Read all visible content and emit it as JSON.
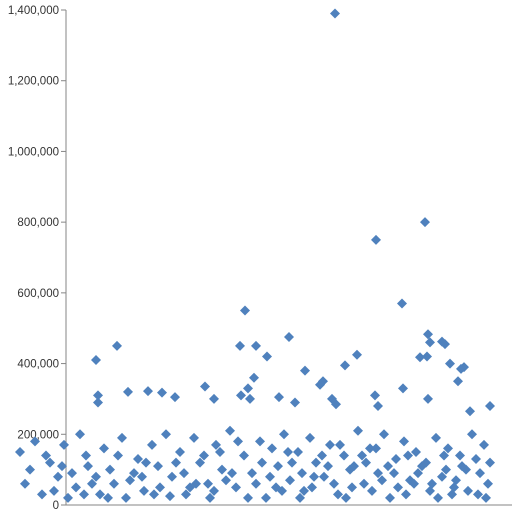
{
  "chart_data": {
    "type": "scatter",
    "title": "",
    "xlabel": "",
    "ylabel": "",
    "ylim": [
      0,
      1400000
    ],
    "y_ticks": [
      0,
      200000,
      400000,
      600000,
      800000,
      1000000,
      1200000,
      1400000
    ],
    "y_tick_labels": [
      "0",
      "200,000",
      "400,000",
      "600,000",
      "800,000",
      "1,000,000",
      "1,200,000",
      "1,400,000"
    ],
    "grid": false,
    "marker": "diamond",
    "marker_color": "#4F81BD",
    "series": [
      {
        "points_high": [
          [
            335,
            1390000
          ],
          [
            425,
            800000
          ],
          [
            376,
            750000
          ],
          [
            402,
            570000
          ],
          [
            245,
            550000
          ],
          [
            428,
            483000
          ],
          [
            289,
            475000
          ],
          [
            442,
            462000
          ],
          [
            445,
            455000
          ],
          [
            117,
            450000
          ],
          [
            240,
            450000
          ],
          [
            256,
            450000
          ],
          [
            430,
            460000
          ],
          [
            357,
            425000
          ],
          [
            267,
            420000
          ],
          [
            96,
            410000
          ],
          [
            420,
            418000
          ],
          [
            427,
            420000
          ],
          [
            464,
            390000
          ],
          [
            345,
            395000
          ],
          [
            305,
            380000
          ],
          [
            450,
            400000
          ],
          [
            461,
            385000
          ],
          [
            254,
            360000
          ],
          [
            458,
            350000
          ],
          [
            320,
            340000
          ],
          [
            248,
            330000
          ],
          [
            403,
            330000
          ],
          [
            98,
            310000
          ],
          [
            128,
            320000
          ],
          [
            148,
            322000
          ],
          [
            162,
            318000
          ],
          [
            205,
            335000
          ],
          [
            241,
            310000
          ],
          [
            323,
            350000
          ],
          [
            175,
            305000
          ],
          [
            214,
            300000
          ],
          [
            279,
            305000
          ],
          [
            332,
            300000
          ],
          [
            375,
            310000
          ],
          [
            428,
            300000
          ],
          [
            490,
            280000
          ],
          [
            98,
            290000
          ],
          [
            250,
            300000
          ],
          [
            295,
            290000
          ],
          [
            336,
            285000
          ],
          [
            378,
            280000
          ],
          [
            470,
            265000
          ]
        ],
        "points_low": [
          [
            20,
            150000
          ],
          [
            35,
            180000
          ],
          [
            50,
            120000
          ],
          [
            64,
            170000
          ],
          [
            72,
            90000
          ],
          [
            80,
            200000
          ],
          [
            86,
            140000
          ],
          [
            92,
            60000
          ],
          [
            104,
            160000
          ],
          [
            110,
            100000
          ],
          [
            122,
            190000
          ],
          [
            130,
            70000
          ],
          [
            138,
            130000
          ],
          [
            144,
            40000
          ],
          [
            152,
            170000
          ],
          [
            158,
            110000
          ],
          [
            166,
            200000
          ],
          [
            172,
            80000
          ],
          [
            180,
            150000
          ],
          [
            186,
            30000
          ],
          [
            194,
            190000
          ],
          [
            200,
            120000
          ],
          [
            208,
            60000
          ],
          [
            216,
            170000
          ],
          [
            222,
            100000
          ],
          [
            230,
            210000
          ],
          [
            236,
            50000
          ],
          [
            244,
            140000
          ],
          [
            252,
            90000
          ],
          [
            260,
            180000
          ],
          [
            266,
            20000
          ],
          [
            272,
            160000
          ],
          [
            278,
            110000
          ],
          [
            284,
            200000
          ],
          [
            290,
            70000
          ],
          [
            298,
            150000
          ],
          [
            304,
            40000
          ],
          [
            310,
            190000
          ],
          [
            316,
            120000
          ],
          [
            324,
            80000
          ],
          [
            330,
            170000
          ],
          [
            338,
            30000
          ],
          [
            344,
            140000
          ],
          [
            350,
            100000
          ],
          [
            358,
            210000
          ],
          [
            364,
            60000
          ],
          [
            370,
            160000
          ],
          [
            378,
            90000
          ],
          [
            384,
            200000
          ],
          [
            390,
            20000
          ],
          [
            396,
            130000
          ],
          [
            404,
            180000
          ],
          [
            410,
            70000
          ],
          [
            416,
            150000
          ],
          [
            422,
            110000
          ],
          [
            430,
            40000
          ],
          [
            436,
            190000
          ],
          [
            442,
            80000
          ],
          [
            448,
            160000
          ],
          [
            454,
            50000
          ],
          [
            460,
            140000
          ],
          [
            466,
            100000
          ],
          [
            472,
            200000
          ],
          [
            478,
            30000
          ],
          [
            484,
            170000
          ],
          [
            490,
            120000
          ],
          [
            25,
            60000
          ],
          [
            42,
            30000
          ],
          [
            58,
            80000
          ],
          [
            68,
            20000
          ],
          [
            76,
            50000
          ],
          [
            88,
            110000
          ],
          [
            100,
            30000
          ],
          [
            114,
            60000
          ],
          [
            126,
            20000
          ],
          [
            134,
            90000
          ],
          [
            146,
            120000
          ],
          [
            160,
            50000
          ],
          [
            170,
            25000
          ],
          [
            184,
            90000
          ],
          [
            196,
            60000
          ],
          [
            210,
            20000
          ],
          [
            220,
            150000
          ],
          [
            232,
            90000
          ],
          [
            248,
            20000
          ],
          [
            256,
            60000
          ],
          [
            270,
            80000
          ],
          [
            282,
            40000
          ],
          [
            292,
            120000
          ],
          [
            302,
            90000
          ],
          [
            312,
            50000
          ],
          [
            322,
            140000
          ],
          [
            334,
            60000
          ],
          [
            346,
            20000
          ],
          [
            354,
            110000
          ],
          [
            362,
            140000
          ],
          [
            372,
            40000
          ],
          [
            382,
            70000
          ],
          [
            394,
            90000
          ],
          [
            406,
            30000
          ],
          [
            414,
            60000
          ],
          [
            426,
            120000
          ],
          [
            438,
            20000
          ],
          [
            446,
            100000
          ],
          [
            456,
            70000
          ],
          [
            468,
            40000
          ],
          [
            480,
            90000
          ],
          [
            488,
            60000
          ],
          [
            30,
            100000
          ],
          [
            46,
            140000
          ],
          [
            54,
            40000
          ],
          [
            62,
            110000
          ],
          [
            84,
            30000
          ],
          [
            96,
            80000
          ],
          [
            108,
            20000
          ],
          [
            118,
            140000
          ],
          [
            142,
            80000
          ],
          [
            154,
            30000
          ],
          [
            176,
            120000
          ],
          [
            190,
            50000
          ],
          [
            204,
            140000
          ],
          [
            214,
            40000
          ],
          [
            226,
            70000
          ],
          [
            238,
            180000
          ],
          [
            262,
            120000
          ],
          [
            276,
            50000
          ],
          [
            288,
            150000
          ],
          [
            300,
            20000
          ],
          [
            314,
            80000
          ],
          [
            328,
            110000
          ],
          [
            340,
            170000
          ],
          [
            352,
            50000
          ],
          [
            366,
            120000
          ],
          [
            376,
            160000
          ],
          [
            388,
            110000
          ],
          [
            398,
            50000
          ],
          [
            408,
            140000
          ],
          [
            418,
            90000
          ],
          [
            432,
            60000
          ],
          [
            444,
            140000
          ],
          [
            452,
            30000
          ],
          [
            462,
            110000
          ],
          [
            476,
            130000
          ],
          [
            486,
            20000
          ]
        ]
      }
    ]
  }
}
